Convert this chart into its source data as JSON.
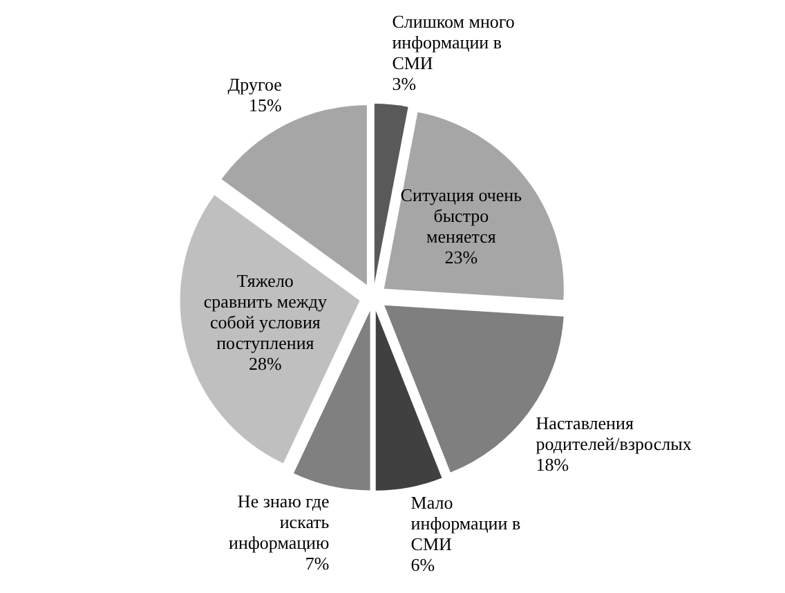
{
  "chart_data": {
    "type": "pie",
    "categories": [
      "Слишком много информации в СМИ",
      "Ситуация очень быстро меняется",
      "Наставления родителей/взрослых",
      "Мало информации в СМИ",
      "Не знаю где искать информацию",
      "Тяжело сравнить между собой условия поступления",
      "Другое"
    ],
    "values": [
      3,
      23,
      18,
      6,
      7,
      28,
      15
    ],
    "value_labels": [
      "3%",
      "23%",
      "18%",
      "6%",
      "7%",
      "28%",
      "15%"
    ],
    "colors": [
      "#595959",
      "#a6a6a6",
      "#7f7f7f",
      "#404040",
      "#808080",
      "#bfbfbf",
      "#a6a6a6"
    ]
  }
}
